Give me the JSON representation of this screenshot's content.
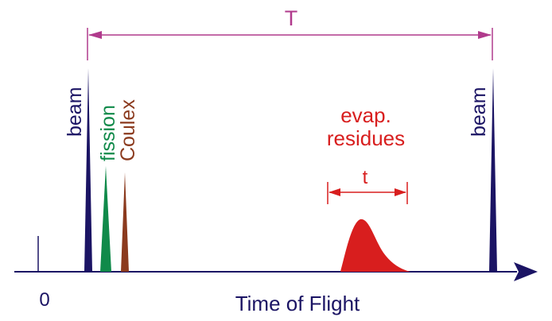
{
  "labels": {
    "period": "T",
    "beam_left": "beam",
    "beam_right": "beam",
    "fission": "fission",
    "coulex": "Coulex",
    "evap_line1": "evap.",
    "evap_line2": "residues",
    "width": "t",
    "zero": "0",
    "axis": "Time of Flight"
  },
  "colors": {
    "beam": "#1b1464",
    "fission": "#108a4a",
    "coulex": "#8b3a1e",
    "residues": "#d81e1e",
    "period_arrow": "#b03a8c",
    "axis": "#1b1464",
    "zero_tick": "#1b1464",
    "text_dark": "#1b1464"
  }
}
